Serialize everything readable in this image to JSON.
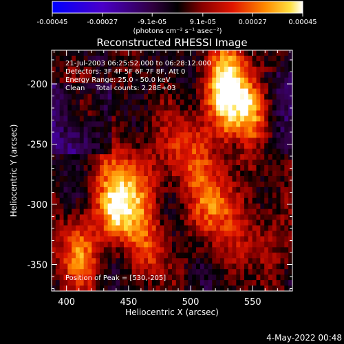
{
  "chart_data": {
    "type": "heatmap",
    "title": "Reconstructed RHESSI Image",
    "xlabel": "Heliocentric X (arcsec)",
    "ylabel": "Heliocentric Y (arcsec)",
    "xlim": [
      388,
      582
    ],
    "ylim": [
      -372,
      -172
    ],
    "xticks": [
      400,
      450,
      500,
      550
    ],
    "yticks": [
      -200,
      -250,
      -300,
      -350
    ],
    "colorbar": {
      "min": -0.00045,
      "max": 0.00045,
      "ticks": [
        "-0.00045",
        "-0.00027",
        "-9.1e-05",
        "9.1e-05",
        "0.00027",
        "0.00045"
      ],
      "unit": "(photons cm⁻² s⁻¹ asec⁻²)"
    },
    "annotations": [
      "21-Jul-2003 06:25:52.000 to 06:28:12.000",
      "Detectors: 3F 4F 5F 6F 7F 8F, Att 0",
      "Energy Range: 25.0 - 50.0 keV",
      "Clean     Total counts: 2.28E+03"
    ],
    "peak_label": "Position of Peak = [530,-205]",
    "peak": [
      530,
      -205
    ],
    "grid": false
  },
  "footer": {
    "date": "4-May-2022 00:48"
  }
}
